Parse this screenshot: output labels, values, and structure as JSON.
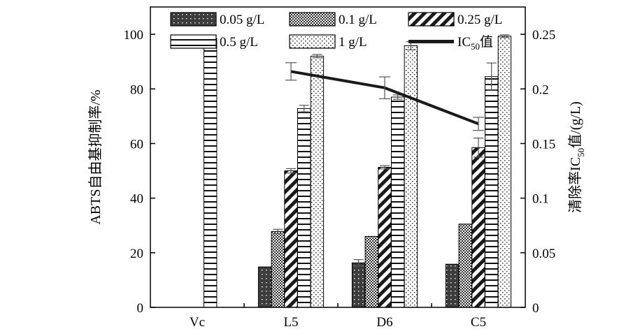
{
  "chart_data": {
    "type": "bar",
    "categories": [
      "Vc",
      "L5",
      "D6",
      "C5"
    ],
    "ylabel_left": "ABTS自由基抑制率/%",
    "ylabel_right": "清除率IC50值/(g/L)",
    "ylabel_right_parts": {
      "before": "清除率IC",
      "sub": "50",
      "after": "值/(g/L)"
    },
    "ylim_left": [
      0,
      110
    ],
    "ylim_right": [
      0,
      0.275
    ],
    "yticks_left": [
      0,
      20,
      40,
      60,
      80,
      100
    ],
    "yticks_right": [
      0,
      0.05,
      0.1,
      0.15,
      0.2,
      0.25
    ],
    "yticks_right_labels": [
      "0",
      "0.05",
      "0.1",
      "0.15",
      "0.2",
      "0.25"
    ],
    "series": [
      {
        "name": "0.05 g/L",
        "pattern": "dark-dots",
        "values": [
          null,
          14.8,
          16.3,
          15.8
        ],
        "errors": [
          null,
          0,
          1.2,
          0
        ]
      },
      {
        "name": "0.1 g/L",
        "pattern": "dots-dense",
        "values": [
          null,
          27.8,
          26.0,
          30.5
        ],
        "errors": [
          null,
          0.8,
          0,
          0
        ]
      },
      {
        "name": "0.25 g/L",
        "pattern": "diagonal",
        "values": [
          null,
          50.0,
          51.3,
          58.5
        ],
        "errors": [
          null,
          0.8,
          0.6,
          3.5
        ]
      },
      {
        "name": "0.5 g/L",
        "pattern": "horizontal",
        "values": [
          98.5,
          72.8,
          77.0,
          84.5
        ],
        "errors": [
          1.2,
          1.2,
          0.8,
          5.0
        ]
      },
      {
        "name": "1 g/L",
        "pattern": "sparse-dots",
        "values": [
          null,
          92.0,
          95.8,
          99.3
        ],
        "errors": [
          null,
          0.6,
          1.5,
          0.5
        ]
      }
    ],
    "line_series": {
      "name": "IC50值",
      "name_parts": {
        "before": "IC",
        "sub": "50",
        "after": "值"
      },
      "values": [
        null,
        0.216,
        0.201,
        0.168
      ],
      "errors": [
        null,
        0.008,
        0.01,
        0.006
      ]
    },
    "colors": {
      "bar_dark": "#3d3d3d",
      "line": "#1a1a1a",
      "stroke": "#000000"
    }
  }
}
